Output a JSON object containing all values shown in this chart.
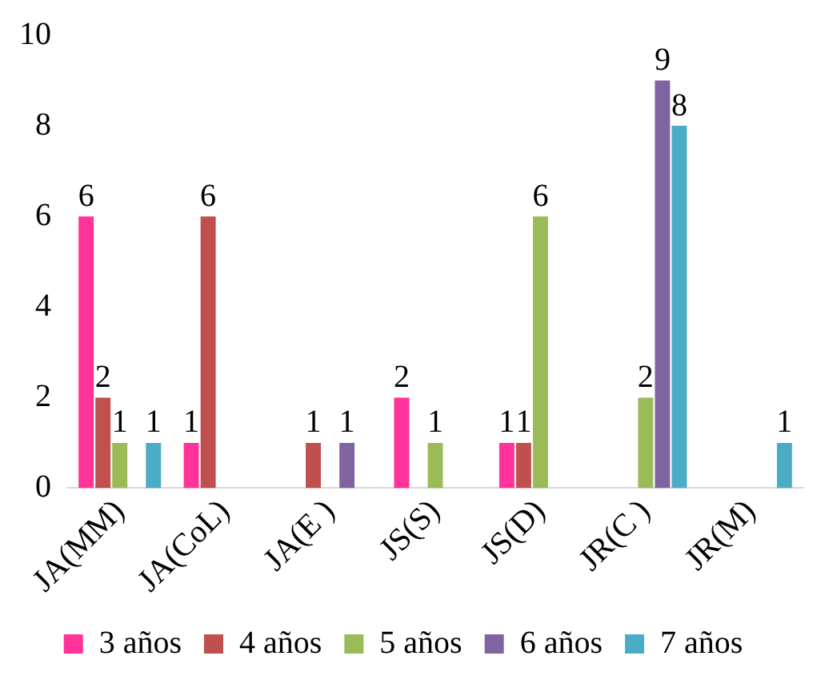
{
  "chart_data": {
    "type": "bar",
    "categories": [
      "JA(MM)",
      "JA(CoL)",
      "JA(E )",
      "JS(S)",
      "JS(D)",
      "JR(C )",
      "JR(M)"
    ],
    "series": [
      {
        "name": "3 años",
        "color": "#ff3399",
        "values": [
          6,
          1,
          0,
          2,
          1,
          0,
          0
        ],
        "value_labels": [
          "6",
          "1",
          null,
          "2",
          "1",
          null,
          null
        ]
      },
      {
        "name": "4 años",
        "color": "#c0504d",
        "values": [
          2,
          6,
          1,
          0,
          1,
          0,
          0
        ],
        "value_labels": [
          "2",
          "6",
          "1",
          null,
          "1",
          null,
          null
        ]
      },
      {
        "name": "5 años",
        "color": "#9bbb59",
        "values": [
          1,
          0,
          0,
          1,
          6,
          2,
          0
        ],
        "value_labels": [
          "1",
          null,
          null,
          "1",
          "6",
          "2",
          null
        ]
      },
      {
        "name": "6 años",
        "color": "#8064a2",
        "values": [
          0,
          0,
          1,
          0,
          0,
          9,
          0
        ],
        "value_labels": [
          null,
          null,
          "1",
          null,
          null,
          "9",
          null
        ]
      },
      {
        "name": "7 años",
        "color": "#4bacc6",
        "values": [
          1,
          0,
          0,
          0,
          0,
          8,
          1
        ],
        "value_labels": [
          "1",
          null,
          null,
          null,
          null,
          "8",
          "1"
        ]
      }
    ],
    "ylim": [
      0,
      10
    ],
    "yticks": [
      0,
      2,
      4,
      6,
      8,
      10
    ],
    "grid": false,
    "legend": "bottom"
  }
}
